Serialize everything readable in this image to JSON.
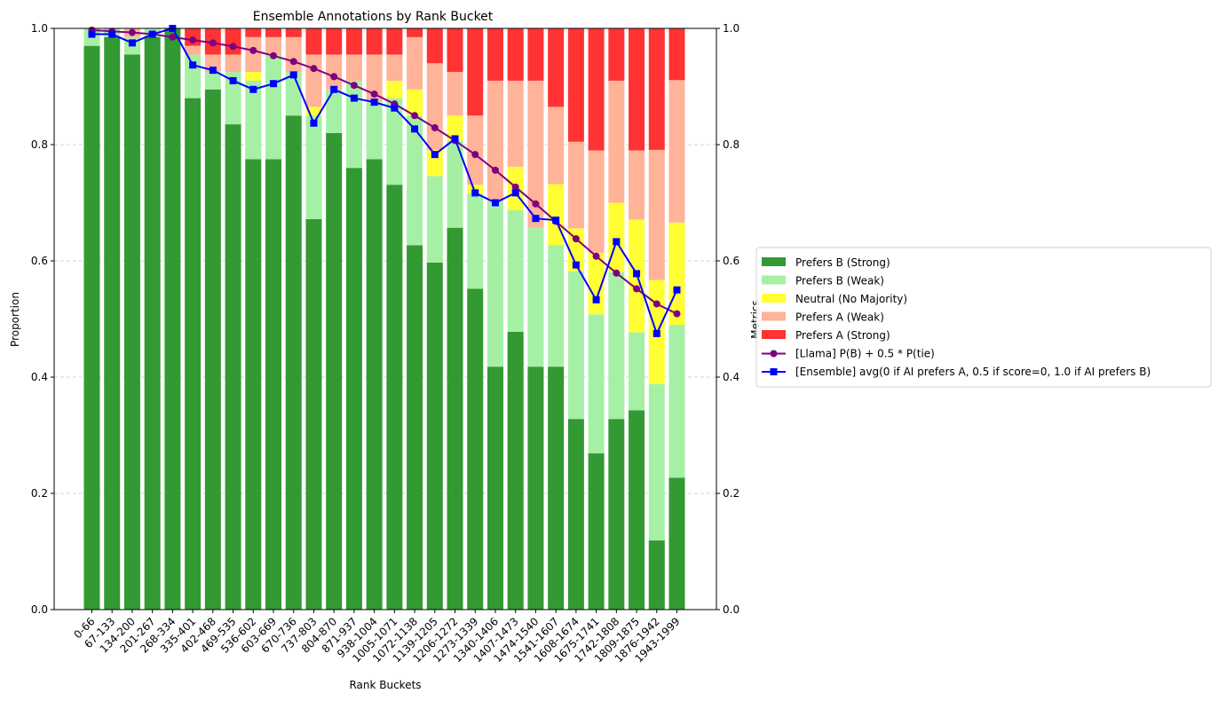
{
  "chart_data": {
    "type": "bar",
    "stacked": true,
    "title": "Ensemble Annotations by Rank Bucket",
    "xlabel": "Rank Buckets",
    "ylabel": "Proportion",
    "ylabel_right": "Metrics",
    "ylim": [
      0,
      1
    ],
    "ylim_right": [
      0,
      1
    ],
    "yticks": [
      "0.0",
      "0.2",
      "0.4",
      "0.6",
      "0.8",
      "1.0"
    ],
    "grid": "horizontal-dashed",
    "legend_position": "outside-right",
    "categories": [
      "0-66",
      "67-133",
      "134-200",
      "201-267",
      "268-334",
      "335-401",
      "402-468",
      "469-535",
      "536-602",
      "603-669",
      "670-736",
      "737-803",
      "804-870",
      "871-937",
      "938-1004",
      "1005-1071",
      "1072-1138",
      "1139-1205",
      "1206-1272",
      "1273-1339",
      "1340-1406",
      "1407-1473",
      "1474-1540",
      "1541-1607",
      "1608-1674",
      "1675-1741",
      "1742-1808",
      "1809-1875",
      "1876-1942",
      "1943-1999"
    ],
    "series": [
      {
        "name": "Prefers B (Strong)",
        "color": "#339933",
        "values": [
          0.97,
          0.985,
          0.955,
          0.985,
          1.0,
          0.88,
          0.895,
          0.835,
          0.775,
          0.775,
          0.85,
          0.672,
          0.82,
          0.76,
          0.775,
          0.731,
          0.627,
          0.597,
          0.657,
          0.552,
          0.418,
          0.478,
          0.418,
          0.418,
          0.328,
          0.269,
          0.328,
          0.343,
          0.119,
          0.227
        ]
      },
      {
        "name": "Prefers B (Weak)",
        "color": "#a6f0a6",
        "values": [
          0.03,
          0.015,
          0.03,
          0.015,
          0.0,
          0.075,
          0.03,
          0.09,
          0.135,
          0.18,
          0.075,
          0.178,
          0.075,
          0.15,
          0.1,
          0.149,
          0.223,
          0.149,
          0.15,
          0.164,
          0.284,
          0.209,
          0.239,
          0.209,
          0.254,
          0.239,
          0.253,
          0.134,
          0.269,
          0.263
        ]
      },
      {
        "name": "Neutral (No Majority)",
        "color": "#ffff33",
        "values": [
          0.0,
          0.0,
          0.0,
          0.0,
          0.0,
          0.0,
          0.0,
          0.0,
          0.015,
          0.0,
          0.0,
          0.015,
          0.0,
          0.0,
          0.0,
          0.03,
          0.045,
          0.045,
          0.043,
          0.015,
          0.0,
          0.075,
          0.0,
          0.105,
          0.074,
          0.106,
          0.119,
          0.194,
          0.179,
          0.176
        ]
      },
      {
        "name": "Prefers A (Weak)",
        "color": "#ffb399",
        "values": [
          0.0,
          0.0,
          0.015,
          0.0,
          0.0,
          0.015,
          0.03,
          0.03,
          0.06,
          0.03,
          0.06,
          0.09,
          0.06,
          0.045,
          0.08,
          0.045,
          0.09,
          0.149,
          0.075,
          0.119,
          0.208,
          0.148,
          0.253,
          0.133,
          0.149,
          0.176,
          0.21,
          0.119,
          0.224,
          0.245
        ]
      },
      {
        "name": "Prefers A (Strong)",
        "color": "#ff3333",
        "values": [
          0.0,
          0.0,
          0.0,
          0.0,
          0.0,
          0.03,
          0.045,
          0.045,
          0.015,
          0.015,
          0.015,
          0.045,
          0.045,
          0.045,
          0.045,
          0.045,
          0.015,
          0.06,
          0.075,
          0.15,
          0.09,
          0.09,
          0.09,
          0.135,
          0.195,
          0.21,
          0.09,
          0.21,
          0.209,
          0.089
        ]
      }
    ],
    "lines": [
      {
        "name": "[Llama] P(B) + 0.5 * P(tie)",
        "color": "#800080",
        "marker": "circle",
        "values": [
          0.997,
          0.995,
          0.993,
          0.99,
          0.985,
          0.98,
          0.975,
          0.969,
          0.962,
          0.953,
          0.943,
          0.931,
          0.917,
          0.902,
          0.887,
          0.87,
          0.85,
          0.829,
          0.807,
          0.783,
          0.756,
          0.727,
          0.698,
          0.668,
          0.638,
          0.608,
          0.579,
          0.552,
          0.526,
          0.509
        ]
      },
      {
        "name": "[Ensemble] avg(0 if AI prefers A, 0.5 if score=0, 1.0 if AI prefers B)",
        "color": "#0000ff",
        "marker": "square",
        "values": [
          0.99,
          0.99,
          0.975,
          0.99,
          1.0,
          0.937,
          0.928,
          0.91,
          0.895,
          0.905,
          0.92,
          0.837,
          0.895,
          0.88,
          0.873,
          0.863,
          0.827,
          0.783,
          0.81,
          0.717,
          0.7,
          0.717,
          0.673,
          0.67,
          0.593,
          0.533,
          0.633,
          0.578,
          0.475,
          0.55
        ]
      }
    ]
  }
}
